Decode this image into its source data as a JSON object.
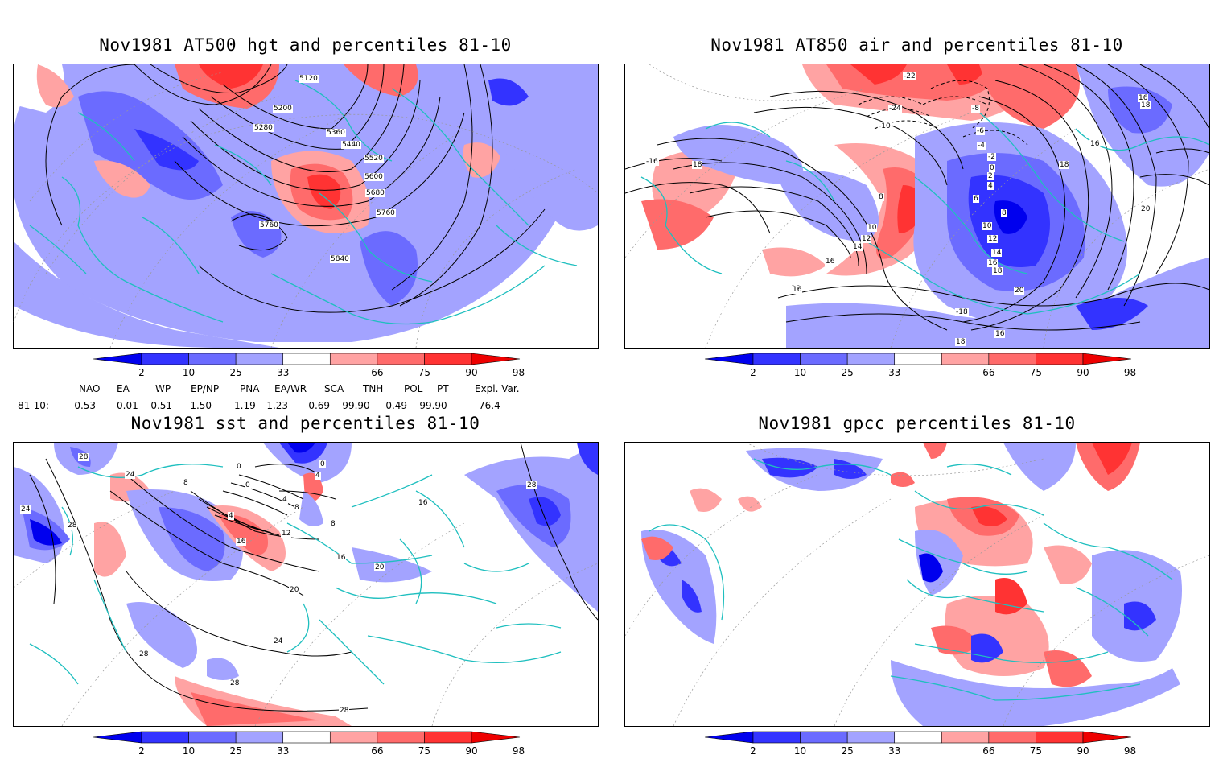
{
  "panels": [
    {
      "title": "Nov1981 AT500 hgt and percentiles 81-10",
      "contour_labels": [
        "5120",
        "5200",
        "5280",
        "5360",
        "5440",
        "5520",
        "5600",
        "5680",
        "5760",
        "5760",
        "5840"
      ]
    },
    {
      "title": "Nov1981 AT850 air and percentiles 81-10",
      "contour_labels": [
        "-22",
        "-24",
        "-10",
        "-8",
        "-6",
        "-4",
        "-2",
        "0",
        "2",
        "4",
        "6",
        "8",
        "10",
        "12",
        "14",
        "16",
        "16",
        "18",
        "20",
        "-16",
        "18",
        "-18",
        "16",
        "18",
        "16",
        "16",
        "18",
        "16",
        "14",
        "12",
        "10",
        "8",
        "20",
        "18",
        "16"
      ]
    },
    {
      "title": "Nov1981 sst and percentiles 81-10",
      "contour_labels": [
        "28",
        "24",
        "24",
        "28",
        "0",
        "8",
        "0",
        "4",
        "4",
        "8",
        "12",
        "16",
        "16",
        "20",
        "20",
        "24",
        "28",
        "28",
        "28",
        "4",
        "0",
        "8",
        "16",
        "28"
      ]
    },
    {
      "title": "Nov1981 gpcc percentiles 81-10",
      "contour_labels": []
    }
  ],
  "colorbar": {
    "labels": [
      "2",
      "10",
      "25",
      "33",
      "66",
      "75",
      "90",
      "98"
    ],
    "colors": [
      "#0000ee",
      "#3333ff",
      "#6b6bff",
      "#a3a3ff",
      "#ffffff",
      "#ffa3a3",
      "#ff6b6b",
      "#ff3333",
      "#ee0000"
    ]
  },
  "indices": {
    "headers": [
      "NAO",
      "EA",
      "WP",
      "EP/NP",
      "PNA",
      "EA/WR",
      "SCA",
      "TNH",
      "POL",
      "PT",
      "Expl. Var."
    ],
    "row_label": "81-10:",
    "values": [
      "-0.53",
      "0.01",
      "-0.51",
      "-1.50",
      "1.19",
      "-1.23",
      "-0.69",
      "-99.90",
      "-0.49",
      "-99.90",
      "76.4"
    ]
  }
}
